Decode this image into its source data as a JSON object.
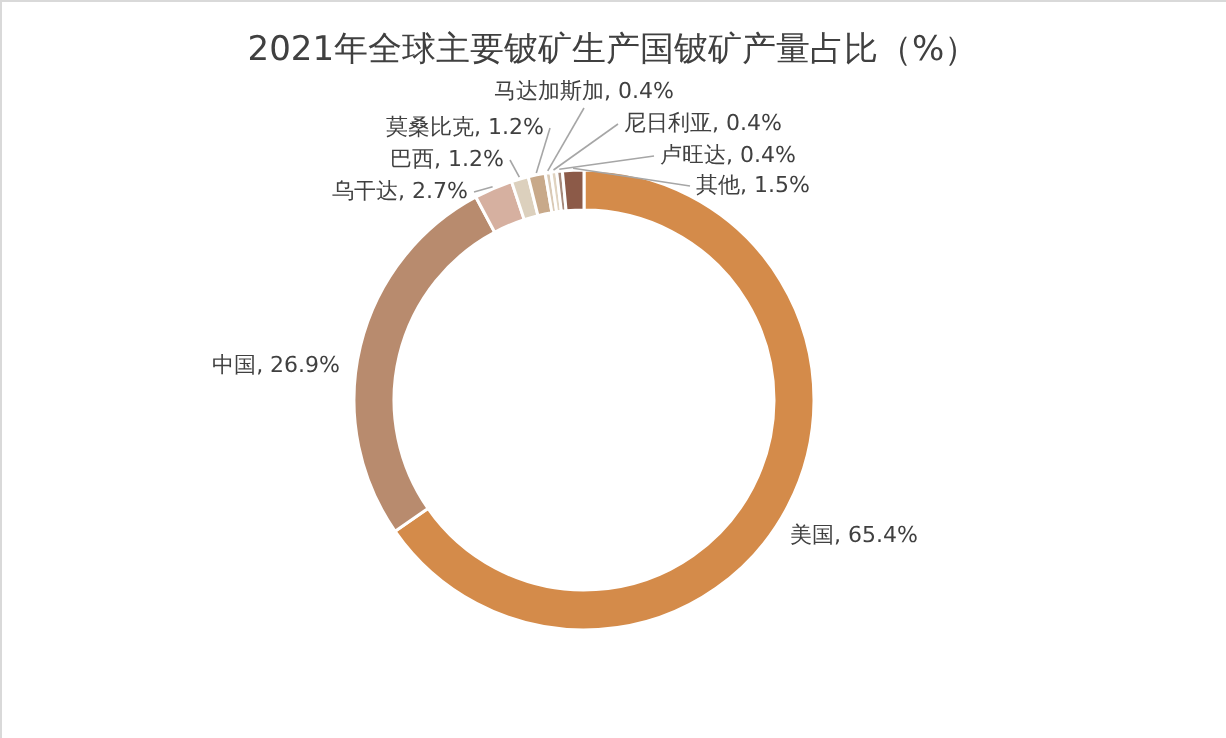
{
  "chart_data": {
    "type": "donut",
    "title": "2021年全球主要铍矿生产国铍矿产量占比（%）",
    "categories": [
      "美国",
      "中国",
      "乌干达",
      "巴西",
      "莫桑比克",
      "马达加斯加",
      "尼日利亚",
      "卢旺达",
      "其他"
    ],
    "values": [
      65.4,
      26.9,
      2.7,
      1.2,
      1.2,
      0.4,
      0.4,
      0.4,
      1.5
    ],
    "value_labels": [
      "65.4%",
      "26.9%",
      "2.7%",
      "1.2%",
      "1.2%",
      "0.4%",
      "0.4%",
      "0.4%",
      "1.5%"
    ],
    "colors": [
      "#d48b4a",
      "#b88b6e",
      "#d6b0a0",
      "#dcd0bd",
      "#c8a98a",
      "#d9c9b5",
      "#e0d3c0",
      "#a6897a",
      "#8c5a48"
    ]
  }
}
